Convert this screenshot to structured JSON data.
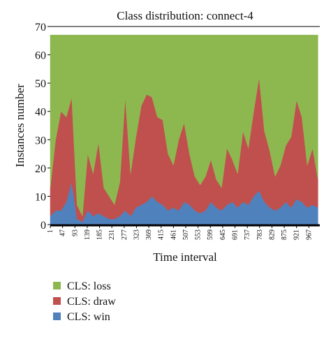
{
  "chart_data": {
    "type": "stacked_area",
    "title": "Class distribution: connect-4",
    "x_label": "Time interval",
    "y_label": "Instances number",
    "x": [
      1,
      21,
      41,
      61,
      81,
      101,
      121,
      141,
      161,
      181,
      201,
      221,
      241,
      261,
      281,
      301,
      321,
      341,
      361,
      381,
      401,
      421,
      441,
      461,
      481,
      501,
      521,
      541,
      561,
      581,
      601,
      621,
      641,
      661,
      681,
      701,
      721,
      741,
      761,
      781,
      801,
      821,
      841,
      861,
      881,
      901,
      921,
      941,
      961,
      981,
      1001
    ],
    "series": [
      {
        "name": "CLS: loss",
        "color": "#8db850",
        "values": [
          54,
          37,
          27,
          29,
          22,
          60,
          64,
          42,
          49,
          38,
          54,
          57,
          60,
          52,
          22,
          49,
          36,
          25,
          21,
          22,
          29,
          30,
          42,
          46,
          37,
          31,
          42,
          50,
          53,
          50,
          44,
          51,
          54,
          40,
          44,
          49,
          34,
          40,
          27,
          15,
          34,
          41,
          50,
          46,
          39,
          36,
          23,
          29,
          46,
          40,
          51
        ]
      },
      {
        "name": "CLS: draw",
        "color": "#c0504d",
        "values": [
          10,
          25,
          35,
          30,
          30,
          5,
          2,
          20,
          15,
          25,
          10,
          8,
          5,
          12,
          40,
          15,
          25,
          35,
          38,
          35,
          30,
          30,
          20,
          15,
          25,
          28,
          18,
          12,
          10,
          12,
          15,
          10,
          8,
          20,
          15,
          12,
          25,
          20,
          30,
          40,
          25,
          20,
          12,
          15,
          20,
          25,
          35,
          30,
          15,
          20,
          10
        ]
      },
      {
        "name": "CLS: win",
        "color": "#4f81bd",
        "values": [
          3,
          5,
          5,
          8,
          15,
          2,
          1,
          5,
          3,
          4,
          3,
          2,
          2,
          3,
          5,
          3,
          6,
          7,
          8,
          10,
          8,
          7,
          5,
          6,
          5,
          8,
          7,
          5,
          4,
          5,
          8,
          6,
          5,
          7,
          8,
          6,
          8,
          7,
          10,
          12,
          8,
          6,
          5,
          6,
          8,
          6,
          9,
          8,
          6,
          7,
          6
        ]
      }
    ],
    "xlim": [
      1,
      1008
    ],
    "xticks": [
      1,
      47,
      93,
      139,
      185,
      231,
      277,
      323,
      369,
      415,
      461,
      507,
      553,
      599,
      645,
      691,
      737,
      783,
      829,
      875,
      921,
      967
    ],
    "ylim": [
      0,
      70
    ],
    "yticks": [
      0,
      10,
      20,
      30,
      40,
      50,
      60,
      70
    ]
  }
}
